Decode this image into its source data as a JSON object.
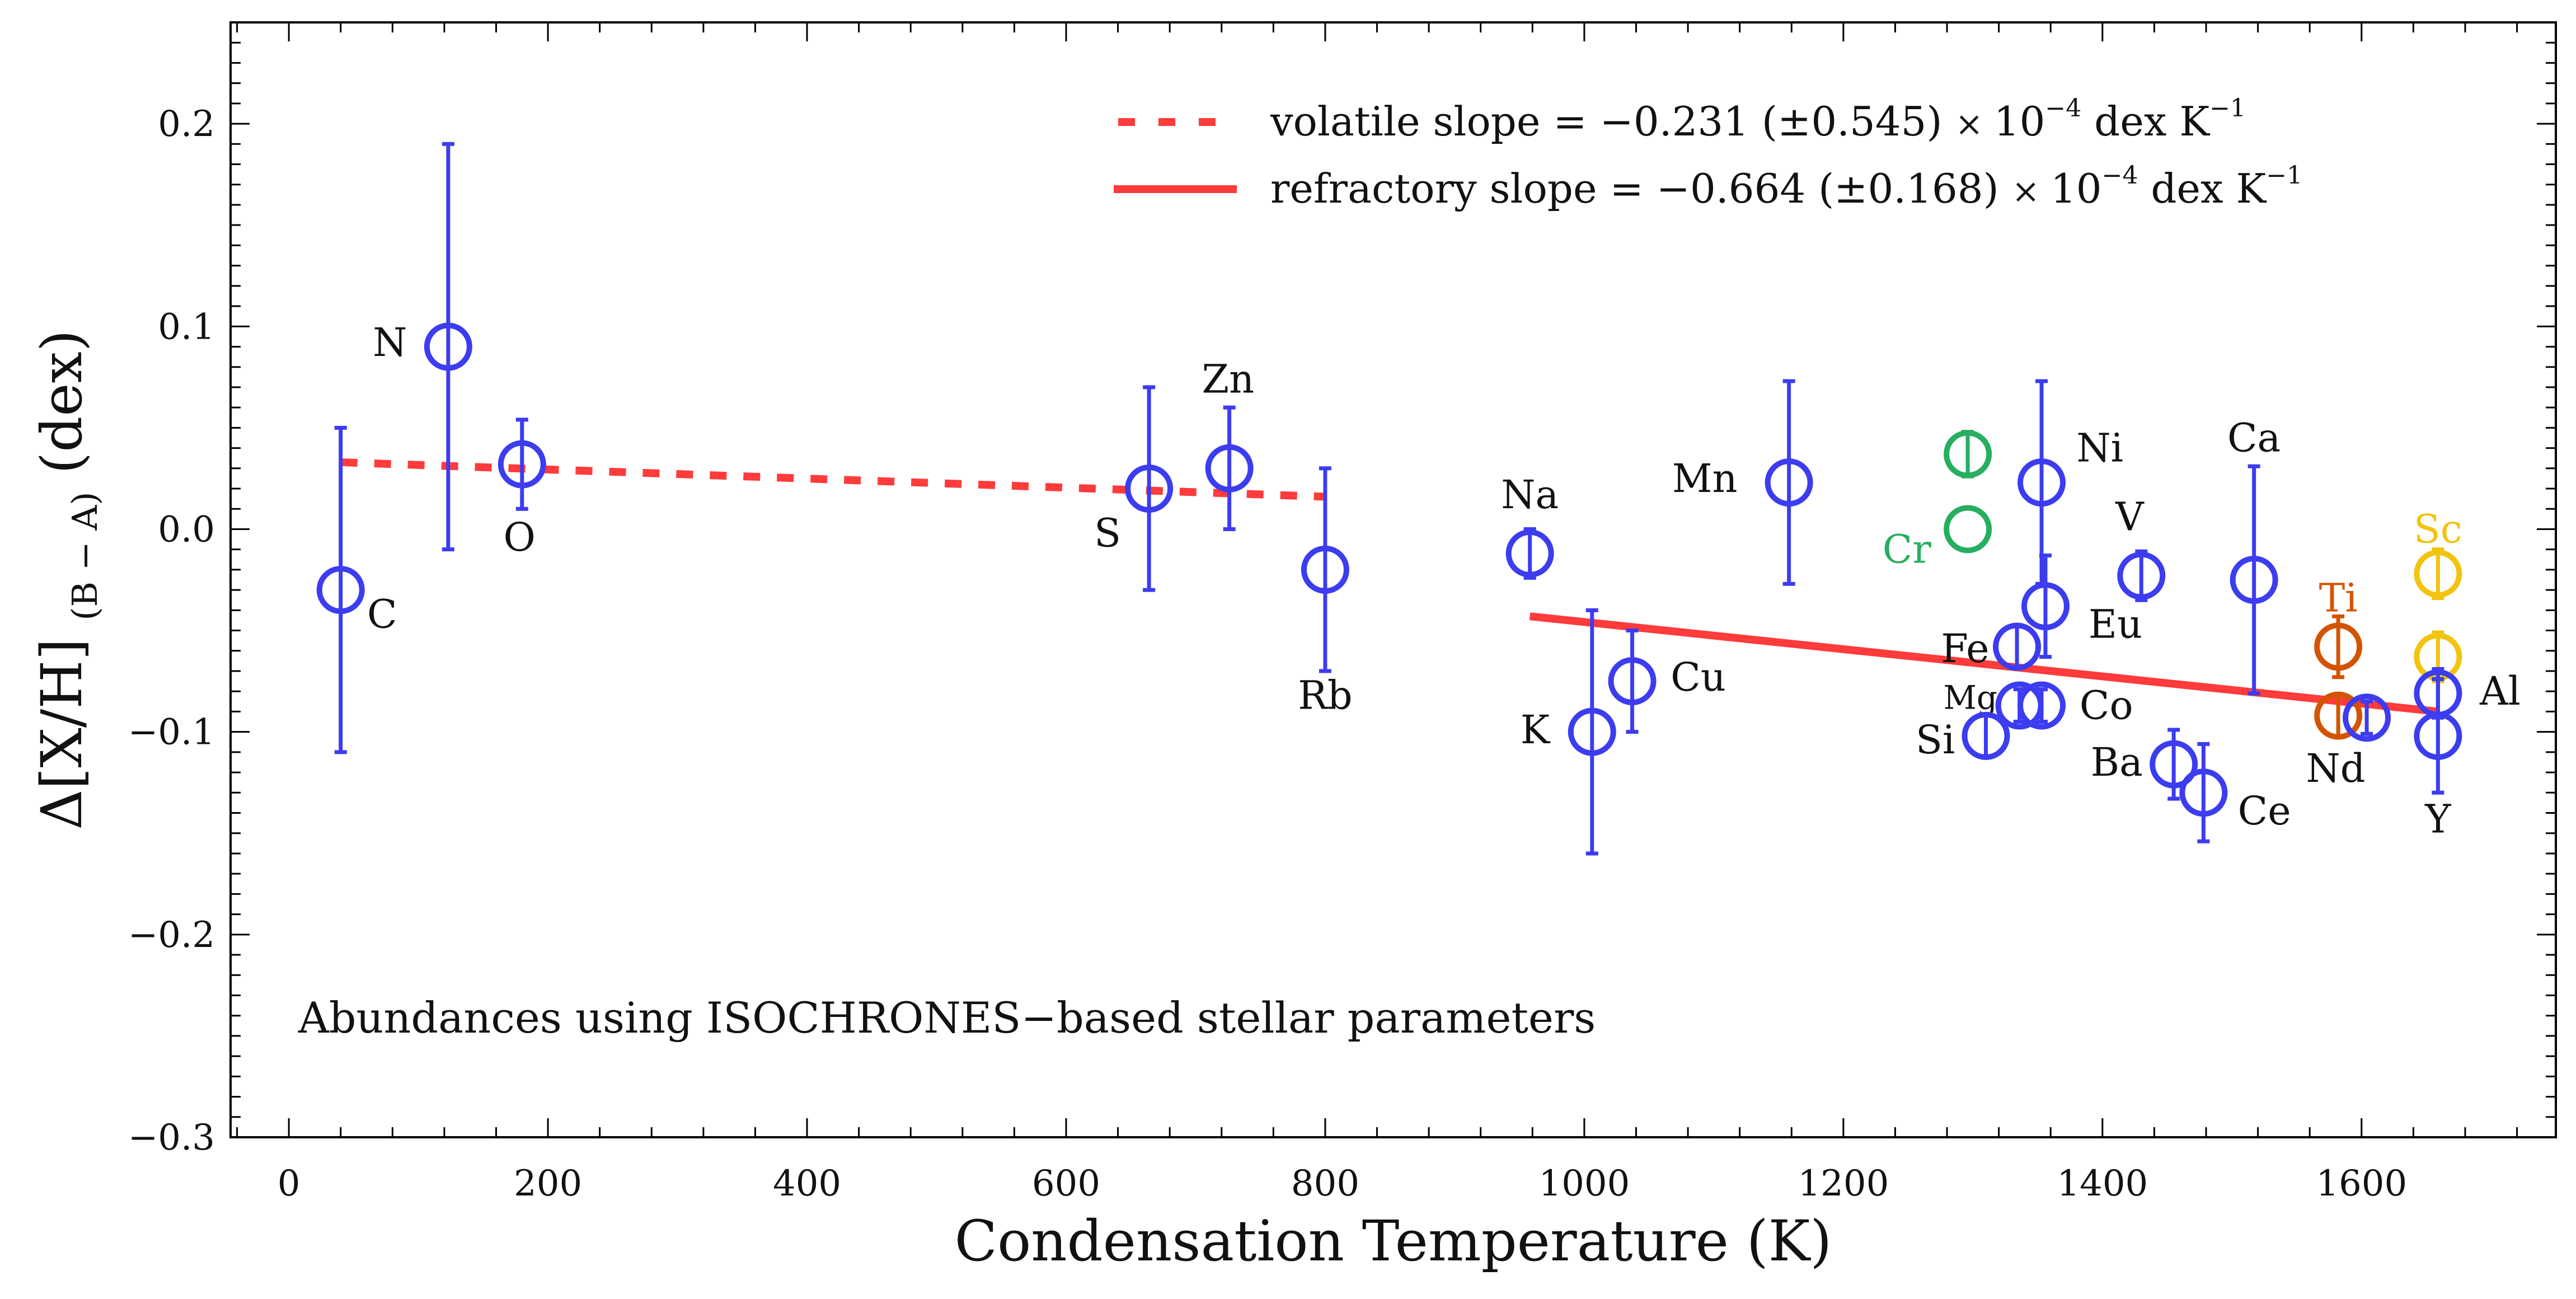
{
  "chart_data": {
    "type": "scatter",
    "xlabel": "Condensation Temperature (K)",
    "ylabel_main": "Δ[X/H]",
    "ylabel_sub": "(B − A)",
    "ylabel_unit": "(dex)",
    "xlim": [
      -45,
      1750
    ],
    "ylim": [
      -0.3,
      0.25
    ],
    "x_ticks": [
      0,
      200,
      400,
      600,
      800,
      1000,
      1200,
      1400,
      1600
    ],
    "x_tick_labels": [
      "0",
      "200",
      "400",
      "600",
      "800",
      "1000",
      "1200",
      "1400",
      "1600"
    ],
    "y_ticks": [
      -0.3,
      -0.2,
      -0.1,
      0.0,
      0.1,
      0.2
    ],
    "y_tick_labels": [
      "−0.3",
      "−0.2",
      "−0.1",
      "0.0",
      "0.1",
      "0.2"
    ],
    "annotation": "Abundances using ISOCHRONES−based stellar parameters",
    "legend": [
      {
        "style": "dashed",
        "color": "#ff3b3b",
        "prefix": "volatile slope = −0.231 (±0.545)",
        "times": "×",
        "mantissa": "10",
        "exponent": "−4",
        "unit": "dex K",
        "unit_exp": "−1"
      },
      {
        "style": "solid",
        "color": "#ff3b3b",
        "prefix": "refractory slope = −0.664 (±0.168)",
        "times": "×",
        "mantissa": "10",
        "exponent": "−4",
        "unit": "dex K",
        "unit_exp": "−1"
      }
    ],
    "fits": [
      {
        "name": "volatile",
        "x": [
          40,
          800
        ],
        "y": [
          0.033,
          0.016
        ],
        "color": "#ff3b3b",
        "dashed": true
      },
      {
        "name": "refractory",
        "x": [
          958,
          1659
        ],
        "y": [
          -0.043,
          -0.09
        ],
        "color": "#ff3b3b",
        "dashed": false
      }
    ],
    "colors": {
      "blue": "#3c3cf0",
      "green": "#27ae60",
      "orange": "#d35400",
      "yellow": "#f1c40f",
      "text": "#111111"
    },
    "points": [
      {
        "el": "C",
        "x": 40,
        "y": -0.03,
        "err": 0.08,
        "color": "blue",
        "lx": 72,
        "ly": -0.042,
        "lc": "text"
      },
      {
        "el": "N",
        "x": 123,
        "y": 0.09,
        "err": 0.1,
        "color": "blue",
        "lx": 78,
        "ly": 0.092,
        "lc": "text"
      },
      {
        "el": "O",
        "x": 180,
        "y": 0.032,
        "err": 0.022,
        "color": "blue",
        "lx": 178,
        "ly": -0.004,
        "lc": "text"
      },
      {
        "el": "S",
        "x": 664,
        "y": 0.02,
        "err": 0.05,
        "color": "blue",
        "lx": 632,
        "ly": -0.002,
        "lc": "text"
      },
      {
        "el": "Zn",
        "x": 726,
        "y": 0.03,
        "err": 0.03,
        "color": "blue",
        "lx": 725,
        "ly": 0.074,
        "lc": "text"
      },
      {
        "el": "Rb",
        "x": 800,
        "y": -0.02,
        "err": 0.05,
        "color": "blue",
        "lx": 800,
        "ly": -0.082,
        "lc": "text"
      },
      {
        "el": "Na",
        "x": 958,
        "y": -0.012,
        "err": 0.012,
        "color": "blue",
        "lx": 958,
        "ly": 0.017,
        "lc": "text"
      },
      {
        "el": "K",
        "x": 1006,
        "y": -0.1,
        "err": 0.06,
        "color": "blue",
        "lx": 962,
        "ly": -0.099,
        "lc": "text"
      },
      {
        "el": "Cu",
        "x": 1037,
        "y": -0.075,
        "err": 0.025,
        "color": "blue",
        "lx": 1088,
        "ly": -0.073,
        "lc": "text"
      },
      {
        "el": "Mn",
        "x": 1158,
        "y": 0.023,
        "err": 0.05,
        "color": "blue",
        "lx": 1093,
        "ly": 0.025,
        "lc": "text"
      },
      {
        "el": "Cr",
        "x": 1296,
        "y": 0.0,
        "err": 0.0,
        "color": "green",
        "lx": 1249,
        "ly": -0.01,
        "lc": "green"
      },
      {
        "el": "",
        "x": 1296,
        "y": 0.037,
        "err": 0.011,
        "color": "green",
        "lx": 0,
        "ly": 0,
        "lc": "green"
      },
      {
        "el": "Fe",
        "x": 1334,
        "y": -0.058,
        "err": 0.01,
        "color": "blue",
        "lx": 1294,
        "ly": -0.059,
        "lc": "text"
      },
      {
        "el": "Mg",
        "x": 1336,
        "y": -0.087,
        "err": 0.008,
        "color": "blue",
        "lx": 1298,
        "ly": -0.082,
        "lc": "text"
      },
      {
        "el": "Si",
        "x": 1310,
        "y": -0.102,
        "err": 0.01,
        "color": "blue",
        "lx": 1271,
        "ly": -0.104,
        "lc": "text"
      },
      {
        "el": "Co",
        "x": 1353,
        "y": -0.087,
        "err": 0.008,
        "color": "blue",
        "lx": 1403,
        "ly": -0.087,
        "lc": "text"
      },
      {
        "el": "Ni",
        "x": 1353,
        "y": 0.023,
        "err": 0.05,
        "color": "blue",
        "lx": 1398,
        "ly": 0.04,
        "lc": "text"
      },
      {
        "el": "Eu",
        "x": 1356,
        "y": -0.038,
        "err": 0.025,
        "color": "blue",
        "lx": 1410,
        "ly": -0.047,
        "lc": "text"
      },
      {
        "el": "V",
        "x": 1430,
        "y": -0.023,
        "err": 0.012,
        "color": "blue",
        "lx": 1421,
        "ly": 0.006,
        "lc": "text"
      },
      {
        "el": "Ba",
        "x": 1455,
        "y": -0.116,
        "err": 0.017,
        "color": "blue",
        "lx": 1411,
        "ly": -0.115,
        "lc": "text"
      },
      {
        "el": "Ce",
        "x": 1478,
        "y": -0.13,
        "err": 0.024,
        "color": "blue",
        "lx": 1525,
        "ly": -0.139,
        "lc": "text"
      },
      {
        "el": "Ca",
        "x": 1517,
        "y": -0.025,
        "err": 0.056,
        "color": "blue",
        "lx": 1517,
        "ly": 0.045,
        "lc": "text"
      },
      {
        "el": "Ti",
        "x": 1582,
        "y": -0.058,
        "err": 0.015,
        "color": "orange",
        "lx": 1582,
        "ly": -0.034,
        "lc": "orange"
      },
      {
        "el": "Nd",
        "x": 1582,
        "y": -0.092,
        "err": 0.01,
        "color": "orange",
        "lx": 1580,
        "ly": -0.118,
        "lc": "text"
      },
      {
        "el": "",
        "x": 1604,
        "y": -0.093,
        "err": 0.008,
        "color": "blue",
        "lx": 0,
        "ly": 0,
        "lc": "text"
      },
      {
        "el": "Sc",
        "x": 1659,
        "y": -0.022,
        "err": 0.012,
        "color": "yellow",
        "lx": 1659,
        "ly": 0.0,
        "lc": "yellow"
      },
      {
        "el": "",
        "x": 1659,
        "y": -0.063,
        "err": 0.012,
        "color": "yellow",
        "lx": 0,
        "ly": 0,
        "lc": "yellow"
      },
      {
        "el": "Al",
        "x": 1659,
        "y": -0.081,
        "err": 0.012,
        "color": "blue",
        "lx": 1707,
        "ly": -0.08,
        "lc": "text"
      },
      {
        "el": "Y",
        "x": 1659,
        "y": -0.102,
        "err": 0.028,
        "color": "blue",
        "lx": 1659,
        "ly": -0.143,
        "lc": "text"
      }
    ]
  }
}
